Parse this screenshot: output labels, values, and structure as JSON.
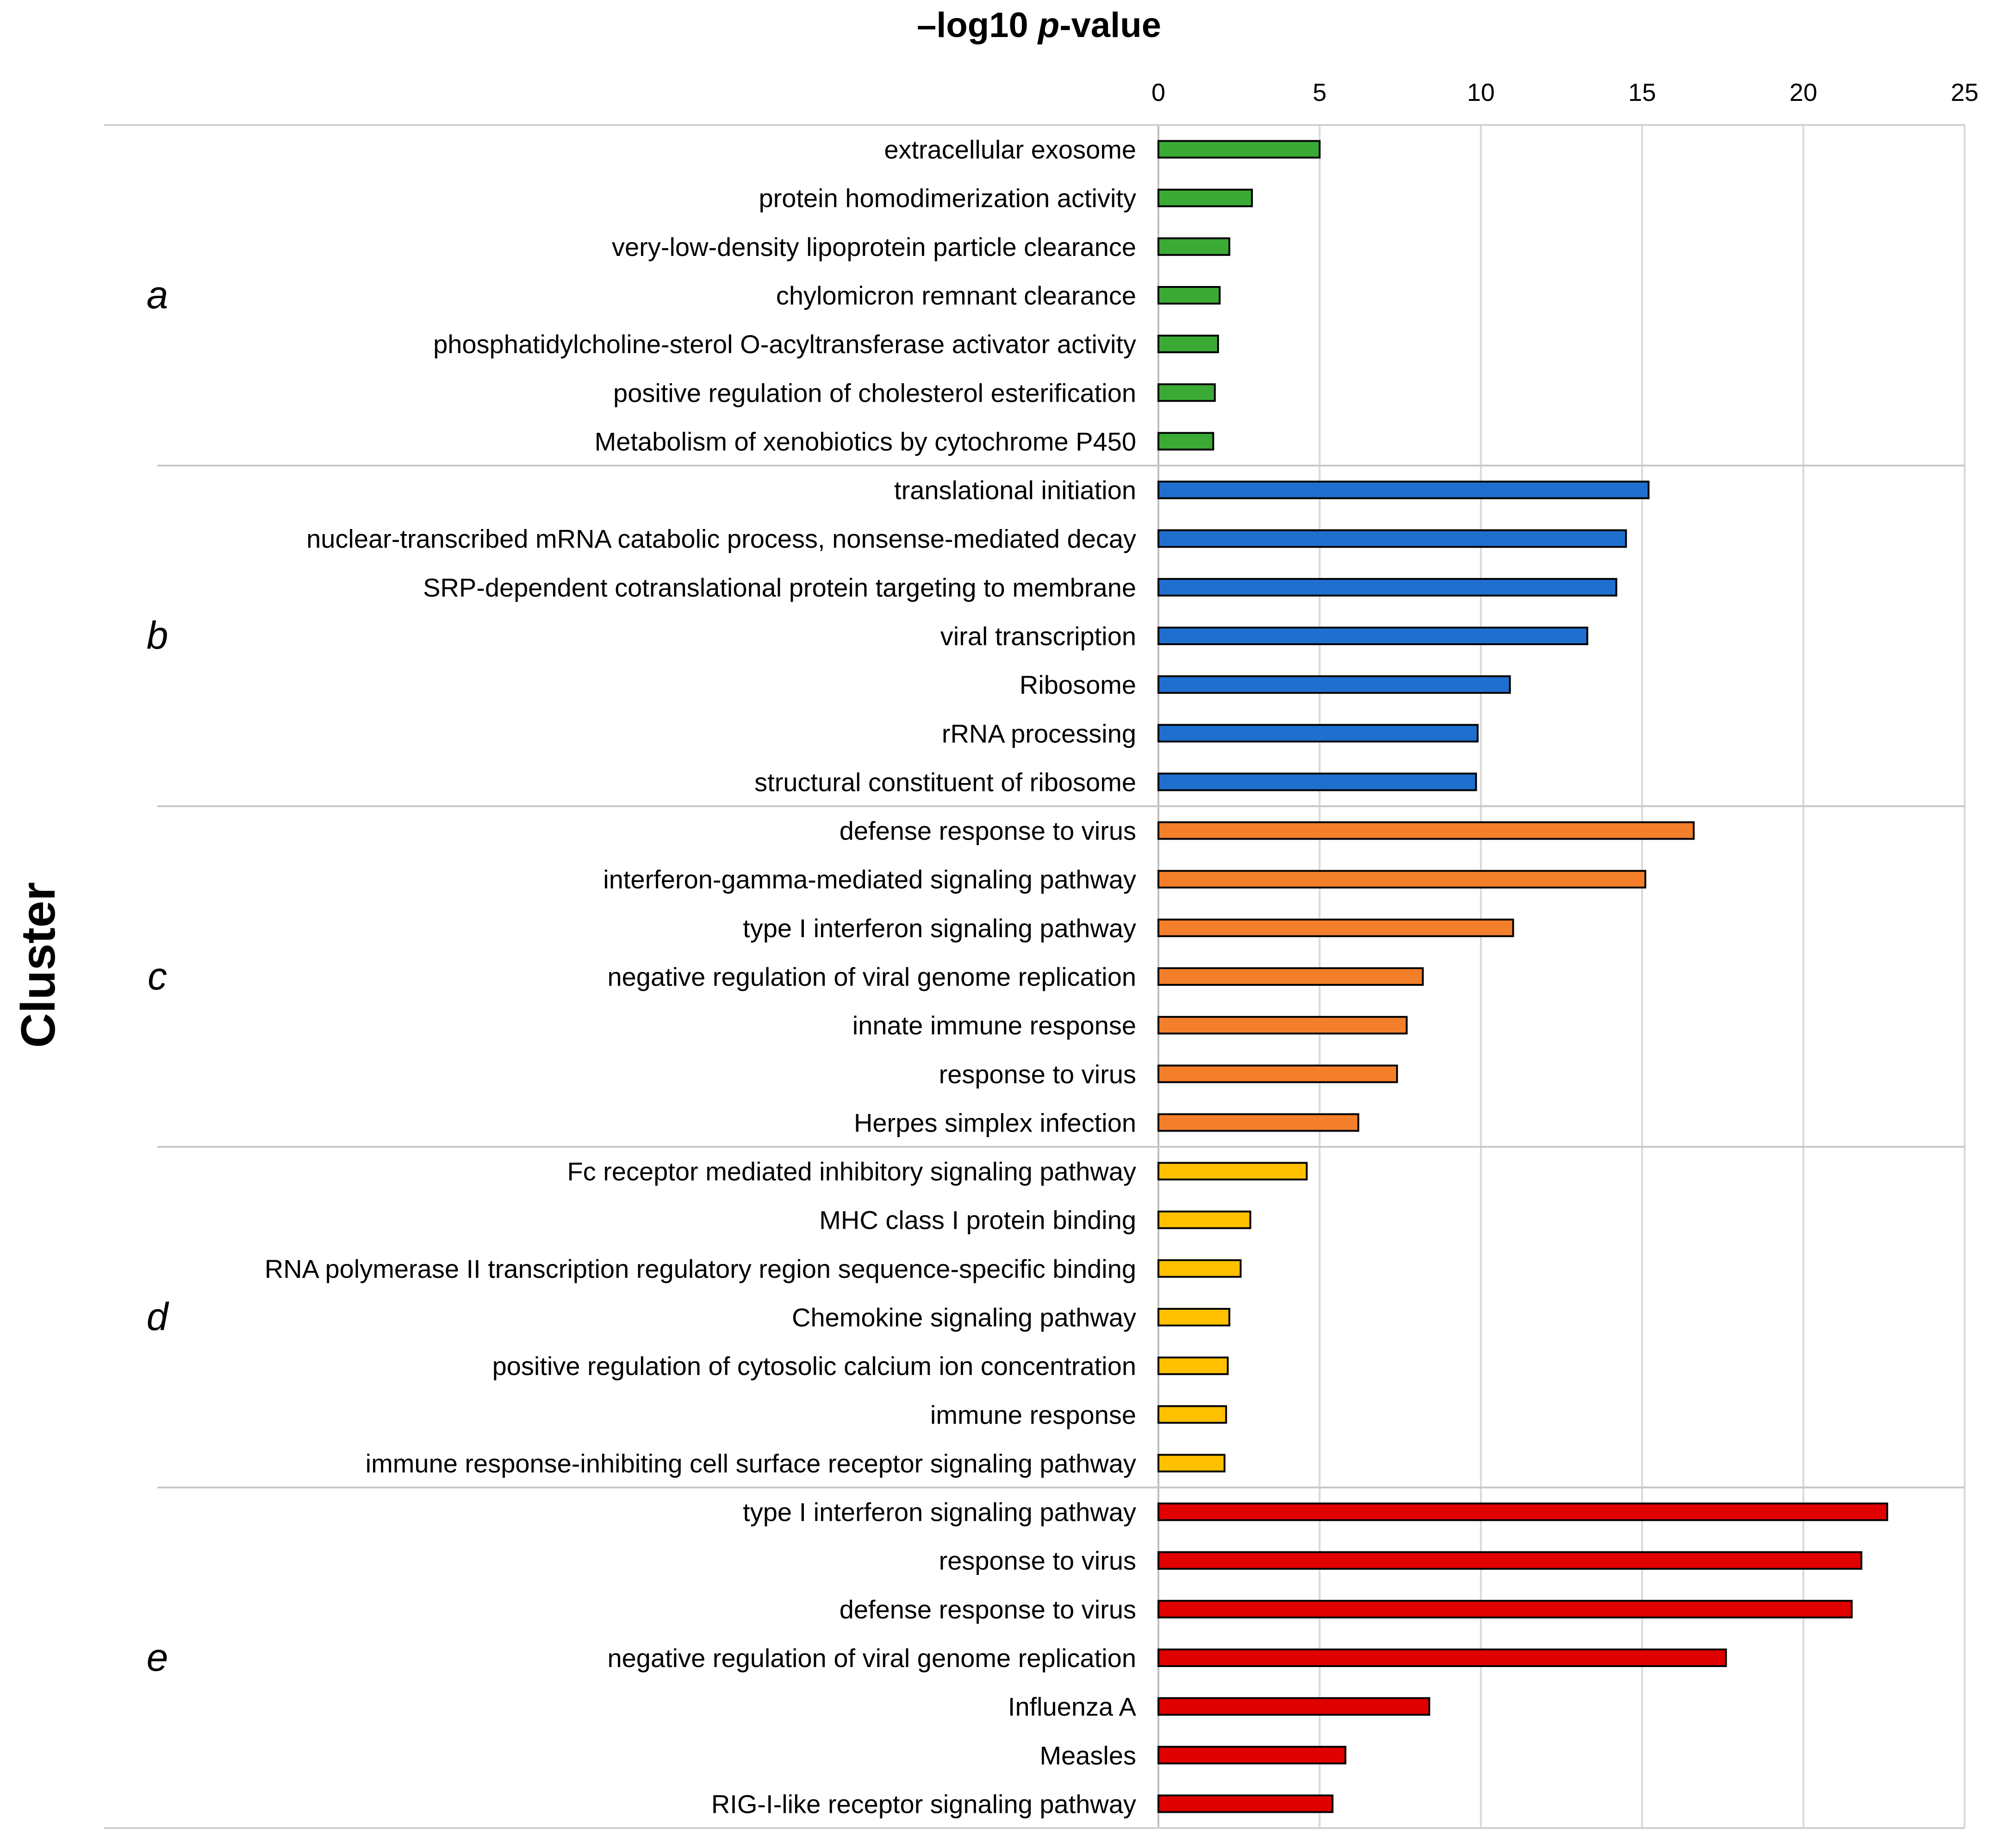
{
  "chart_data": {
    "type": "bar",
    "orientation": "horizontal",
    "title_parts": [
      "–log10 ",
      "p",
      "-value"
    ],
    "xlabel": "–log10 p-value",
    "ylabel": "Cluster",
    "xlim": [
      0,
      25
    ],
    "xticks": [
      "0",
      "5",
      "10",
      "15",
      "20",
      "25"
    ],
    "grid": true,
    "clusters": [
      {
        "label": "a",
        "color": "#3aaa35",
        "terms": [
          {
            "term": "extracellular exosome",
            "value": 5.0
          },
          {
            "term": "protein homodimerization activity",
            "value": 2.9
          },
          {
            "term": "very-low-density lipoprotein particle clearance",
            "value": 2.2
          },
          {
            "term": "chylomicron remnant clearance",
            "value": 1.9
          },
          {
            "term": "phosphatidylcholine-sterol O-acyltransferase activator activity",
            "value": 1.85
          },
          {
            "term": "positive regulation of cholesterol esterification",
            "value": 1.75
          },
          {
            "term": "Metabolism of xenobiotics by cytochrome P450",
            "value": 1.7
          }
        ]
      },
      {
        "label": "b",
        "color": "#1f6fcf",
        "terms": [
          {
            "term": "translational initiation",
            "value": 15.2
          },
          {
            "term": "nuclear-transcribed mRNA catabolic process, nonsense-mediated decay",
            "value": 14.5
          },
          {
            "term": "SRP-dependent cotranslational protein targeting to membrane",
            "value": 14.2
          },
          {
            "term": "viral transcription",
            "value": 13.3
          },
          {
            "term": "Ribosome",
            "value": 10.9
          },
          {
            "term": "rRNA processing",
            "value": 9.9
          },
          {
            "term": "structural constituent of ribosome",
            "value": 9.85
          }
        ]
      },
      {
        "label": "c",
        "color": "#f47f2a",
        "terms": [
          {
            "term": "defense response to virus",
            "value": 16.6
          },
          {
            "term": "interferon-gamma-mediated signaling pathway",
            "value": 15.1
          },
          {
            "term": "type I interferon signaling pathway",
            "value": 11.0
          },
          {
            "term": "negative regulation of viral genome replication",
            "value": 8.2
          },
          {
            "term": "innate immune response",
            "value": 7.7
          },
          {
            "term": "response to virus",
            "value": 7.4
          },
          {
            "term": "Herpes simplex infection",
            "value": 6.2
          }
        ]
      },
      {
        "label": "d",
        "color": "#ffc000",
        "terms": [
          {
            "term": "Fc receptor mediated inhibitory signaling pathway",
            "value": 4.6
          },
          {
            "term": "MHC class I protein binding",
            "value": 2.85
          },
          {
            "term": "RNA polymerase II transcription regulatory region sequence-specific binding",
            "value": 2.55
          },
          {
            "term": "Chemokine signaling pathway",
            "value": 2.2
          },
          {
            "term": "positive regulation of cytosolic calcium ion concentration",
            "value": 2.15
          },
          {
            "term": "immune response",
            "value": 2.1
          },
          {
            "term": "immune response-inhibiting cell surface receptor signaling pathway",
            "value": 2.05
          }
        ]
      },
      {
        "label": "e",
        "color": "#e00000",
        "terms": [
          {
            "term": "type I interferon signaling pathway",
            "value": 22.6
          },
          {
            "term": "response to virus",
            "value": 21.8
          },
          {
            "term": "defense response to virus",
            "value": 21.5
          },
          {
            "term": "negative regulation of viral genome replication",
            "value": 17.6
          },
          {
            "term": "Influenza A",
            "value": 8.4
          },
          {
            "term": "Measles",
            "value": 5.8
          },
          {
            "term": "RIG-I-like receptor signaling pathway",
            "value": 5.4
          }
        ]
      }
    ]
  }
}
